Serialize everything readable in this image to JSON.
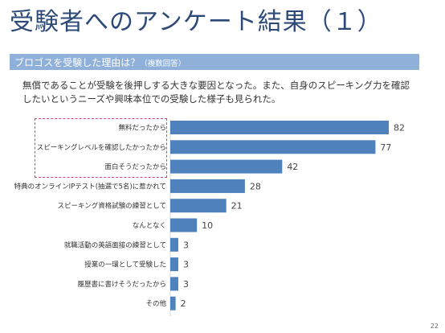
{
  "slide": {
    "title": "受験者へのアンケート結果（１）",
    "section_title": "ブロゴスを受験した理由は？",
    "section_note": "（複数回答）",
    "summary": "無償であることが受験を後押しする大きな要因となった。また、自身のスピーキング力を確認したいというニーズや興味本位での受験した様子も見られた。",
    "page_number": "22"
  },
  "colors": {
    "title": "#2c4a78",
    "band": "#8fb0d9",
    "bar": "#4f81bd",
    "highlight": "#d0409a"
  },
  "chart_data": {
    "type": "bar",
    "orientation": "horizontal",
    "categories": [
      "無料だったから",
      "スピーキングレベルを確認したかったから",
      "面白そうだったから",
      "特典のオンラインIPテスト(抽選で5名)に惹かれて",
      "スピーキング資格試験の練習として",
      "なんとなく",
      "就職活動の英語面接の練習として",
      "授業の一環として受験した",
      "履歴書に書けそうだったから",
      "その他"
    ],
    "values": [
      82,
      77,
      42,
      28,
      21,
      10,
      3,
      3,
      3,
      2
    ],
    "highlighted_categories": [
      "無料だったから",
      "スピーキングレベルを確認したかったから",
      "面白そうだったから"
    ],
    "title": "",
    "xlabel": "",
    "ylabel": "",
    "xlim": [
      0,
      90
    ],
    "grid": false,
    "legend": "none"
  }
}
